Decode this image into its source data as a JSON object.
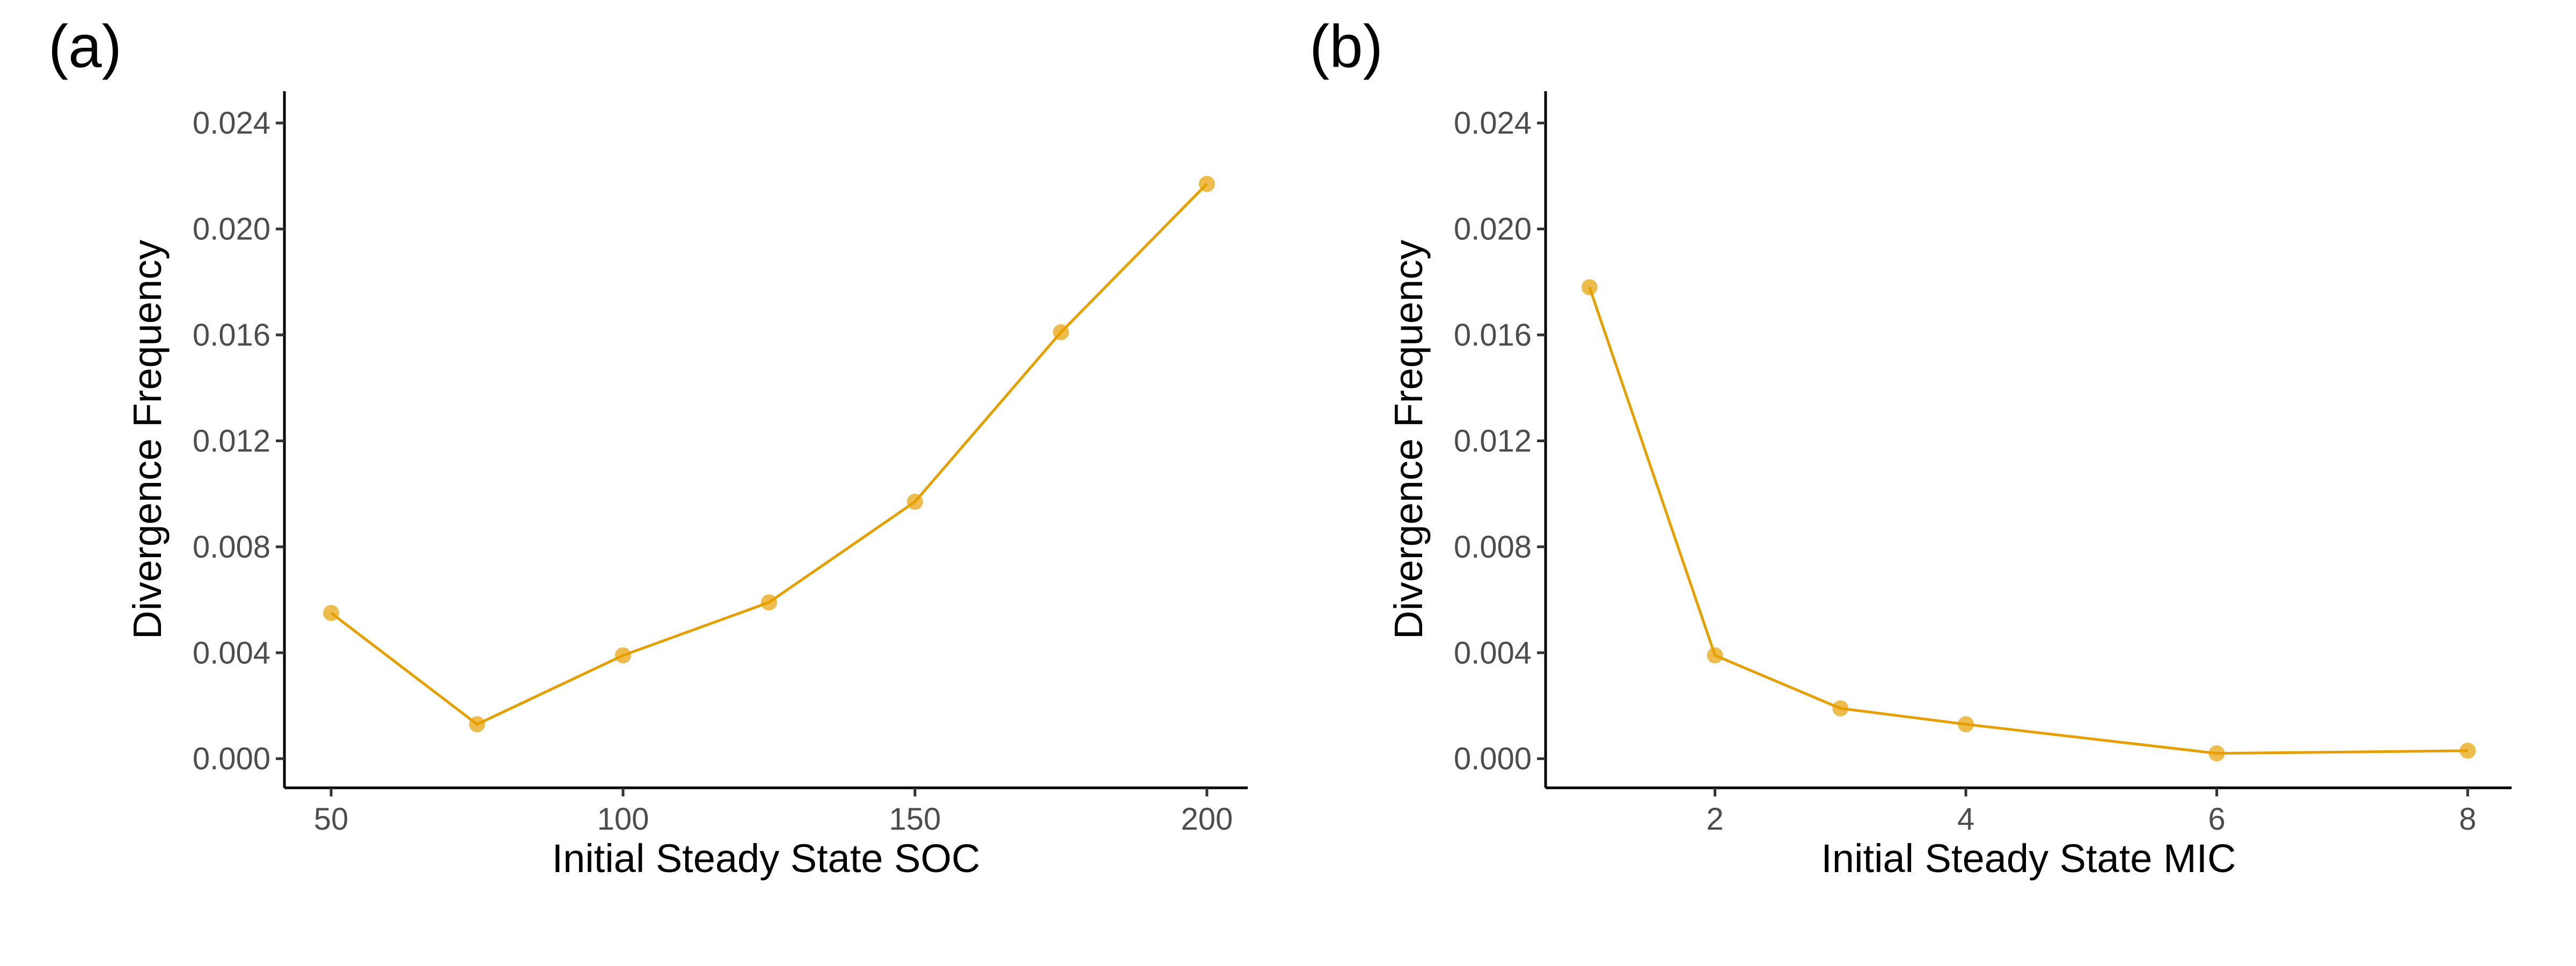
{
  "colors": {
    "series": "#E69F00",
    "axis": "#000000",
    "tick_text": "#4d4d4d"
  },
  "chart_data": [
    {
      "type": "line",
      "panel_label": "(a)",
      "xlabel": "Initial Steady State SOC",
      "ylabel": "Divergence Frequency",
      "xlim": [
        42,
        207
      ],
      "ylim": [
        -0.0011,
        0.0252
      ],
      "xticks": [
        50,
        100,
        150,
        200
      ],
      "xtick_labels": [
        "50",
        "100",
        "150",
        "200"
      ],
      "yticks": [
        0.0,
        0.004,
        0.008,
        0.012,
        0.016,
        0.02,
        0.024
      ],
      "ytick_labels": [
        "0.000",
        "0.004",
        "0.008",
        "0.012",
        "0.016",
        "0.020",
        "0.024"
      ],
      "grid": false,
      "series": [
        {
          "x": [
            50,
            75,
            100,
            125,
            150,
            175,
            200
          ],
          "values": [
            0.0055,
            0.0013,
            0.0039,
            0.0059,
            0.0097,
            0.0161,
            0.0217
          ]
        }
      ]
    },
    {
      "type": "line",
      "panel_label": "(b)",
      "xlabel": "Initial Steady State MIC",
      "ylabel": "Divergence Frequency",
      "xlim": [
        0.65,
        8.35
      ],
      "ylim": [
        -0.0011,
        0.0252
      ],
      "xticks": [
        2,
        4,
        6,
        8
      ],
      "xtick_labels": [
        "2",
        "4",
        "6",
        "8"
      ],
      "yticks": [
        0.0,
        0.004,
        0.008,
        0.012,
        0.016,
        0.02,
        0.024
      ],
      "ytick_labels": [
        "0.000",
        "0.004",
        "0.008",
        "0.012",
        "0.016",
        "0.020",
        "0.024"
      ],
      "grid": false,
      "series": [
        {
          "x": [
            1,
            2,
            3,
            4,
            6,
            8
          ],
          "values": [
            0.0178,
            0.0039,
            0.0019,
            0.0013,
            0.0002,
            0.0003
          ]
        }
      ]
    }
  ]
}
